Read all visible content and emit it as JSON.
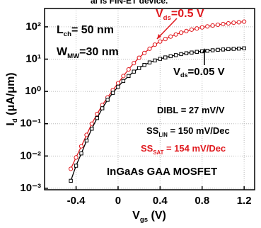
{
  "top_fragment": "al is FIN-ET device.",
  "chart_data": {
    "type": "line",
    "x_label": [
      "V",
      "gs",
      " (V)"
    ],
    "y_label": [
      "I",
      "d",
      " (μA/μm)"
    ],
    "x": [
      -0.45,
      -0.4,
      -0.35,
      -0.3,
      -0.25,
      -0.2,
      -0.15,
      -0.1,
      -0.05,
      0.0,
      0.05,
      0.1,
      0.15,
      0.2,
      0.25,
      0.3,
      0.35,
      0.4,
      0.45,
      0.5,
      0.55,
      0.6,
      0.65,
      0.7,
      0.75,
      0.8,
      0.85,
      0.9,
      0.95,
      1.0,
      1.05,
      1.1,
      1.15,
      1.2
    ],
    "series": [
      {
        "color": "#e0191e",
        "marker": "circle",
        "values": [
          0.004,
          0.009,
          0.02,
          0.045,
          0.1,
          0.2,
          0.38,
          0.65,
          1.1,
          1.8,
          3,
          4.8,
          7.5,
          11,
          15.5,
          21,
          28,
          35,
          42,
          50,
          58,
          66,
          74,
          82,
          89,
          96,
          103,
          110,
          116,
          122,
          128,
          134,
          139,
          145
        ]
      },
      {
        "color": "#000000",
        "marker": "square",
        "values": [
          0.0017,
          0.005,
          0.012,
          0.03,
          0.07,
          0.15,
          0.3,
          0.55,
          0.9,
          1.4,
          2.1,
          3,
          4.1,
          5.3,
          6.6,
          7.9,
          9.1,
          10.2,
          11.3,
          12.3,
          13.3,
          14.3,
          15.2,
          16,
          16.8,
          17.5,
          18.2,
          18.8,
          19.4,
          19.9,
          20.4,
          20.8,
          21.2,
          21.6
        ]
      }
    ],
    "xlim": [
      -0.7,
      1.3
    ],
    "xticks": [
      -0.4,
      0.0,
      0.4,
      0.8,
      1.2
    ],
    "ylim": [
      0.0009,
      370
    ],
    "log_y": true,
    "yticks": [
      {
        "value": 0.001,
        "label": "10⁻³"
      },
      {
        "value": 0.01,
        "label": "10⁻²"
      },
      {
        "value": 0.1,
        "label": "10⁻¹"
      },
      {
        "value": 1,
        "label": "10⁰"
      },
      {
        "value": 10,
        "label": "10¹"
      },
      {
        "value": 100,
        "label": "10²"
      }
    ],
    "grid": true,
    "annotations": [
      {
        "parts": [
          "L",
          "ch",
          "=  50 nm"
        ],
        "color": "#000000"
      },
      {
        "parts": [
          "W",
          "MW",
          "=30 nm"
        ],
        "color": "#000000"
      },
      {
        "parts": [
          "V",
          "ds",
          "=0.5 V"
        ],
        "color": "#e0191e"
      },
      {
        "parts": [
          "V",
          "ds",
          "=0.05 V"
        ],
        "color": "#000000"
      },
      {
        "parts": [
          "DIBL = 27 mV/V"
        ],
        "color": "#000000"
      },
      {
        "parts": [
          "SS",
          "LIN",
          " = 150 mV/Dec"
        ],
        "color": "#000000"
      },
      {
        "parts": [
          "SS",
          "SAT",
          " = 154 mV/Dec"
        ],
        "color": "#e0191e"
      },
      {
        "parts": [
          "InGaAs GAA MOSFET"
        ],
        "color": "#000000"
      }
    ]
  }
}
